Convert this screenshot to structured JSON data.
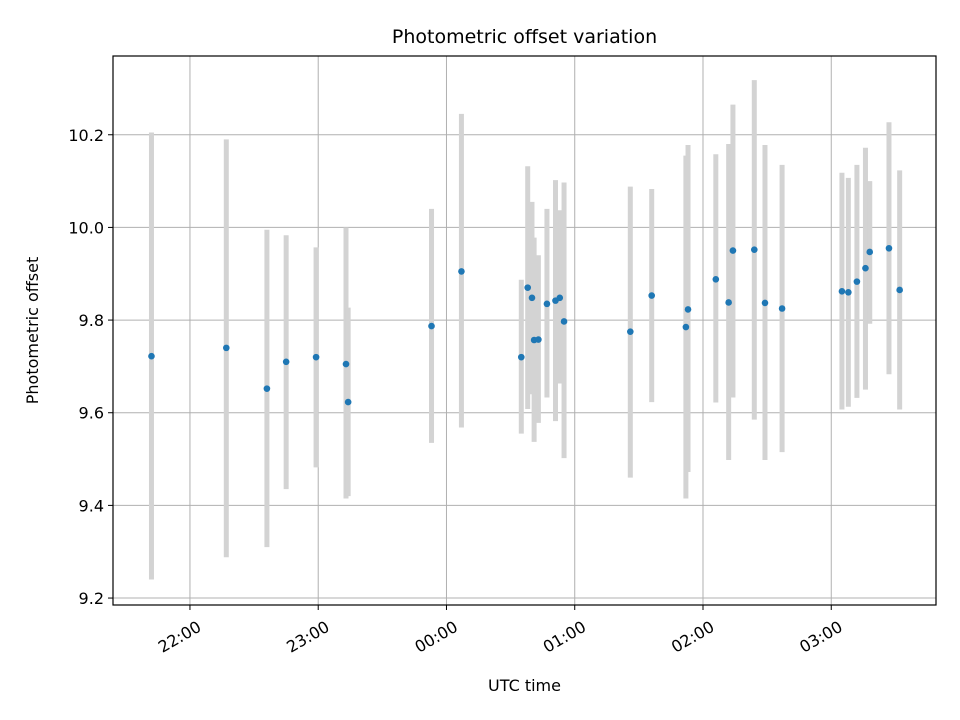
{
  "chart_data": {
    "type": "scatter",
    "title": "Photometric offset variation",
    "xlabel": "UTC time",
    "ylabel": "Photometric offset",
    "xlim": [
      "21:24",
      "03:49"
    ],
    "ylim": [
      9.185,
      10.37
    ],
    "x_ticks": [
      "22:00",
      "23:00",
      "00:00",
      "01:00",
      "02:00",
      "03:00"
    ],
    "y_ticks": [
      "9.2",
      "9.4",
      "9.6",
      "9.8",
      "10.0",
      "10.2"
    ],
    "grid": true,
    "colors": {
      "marker": "#1f77b4",
      "errorbar": "#d3d3d3",
      "grid": "#b0b0b0"
    },
    "series": [
      {
        "points": [
          {
            "x": "21:42",
            "y": 9.722,
            "low": 9.24,
            "high": 10.205
          },
          {
            "x": "22:17",
            "y": 9.74,
            "low": 9.288,
            "high": 10.19
          },
          {
            "x": "22:36",
            "y": 9.652,
            "low": 9.31,
            "high": 9.995
          },
          {
            "x": "22:45",
            "y": 9.71,
            "low": 9.435,
            "high": 9.983
          },
          {
            "x": "22:59",
            "y": 9.72,
            "low": 9.482,
            "high": 9.957
          },
          {
            "x": "23:13",
            "y": 9.705,
            "low": 9.415,
            "high": 10.0
          },
          {
            "x": "23:14",
            "y": 9.623,
            "low": 9.42,
            "high": 9.827
          },
          {
            "x": "23:53",
            "y": 9.787,
            "low": 9.535,
            "high": 10.04
          },
          {
            "x": "00:07",
            "y": 9.905,
            "low": 9.568,
            "high": 10.245
          },
          {
            "x": "00:35",
            "y": 9.72,
            "low": 9.555,
            "high": 9.887
          },
          {
            "x": "00:38",
            "y": 9.87,
            "low": 9.608,
            "high": 10.132
          },
          {
            "x": "00:40",
            "y": 9.848,
            "low": 9.64,
            "high": 10.055
          },
          {
            "x": "00:41",
            "y": 9.757,
            "low": 9.537,
            "high": 9.978
          },
          {
            "x": "00:43",
            "y": 9.758,
            "low": 9.578,
            "high": 9.94
          },
          {
            "x": "00:47",
            "y": 9.835,
            "low": 9.633,
            "high": 10.04
          },
          {
            "x": "00:51",
            "y": 9.842,
            "low": 9.582,
            "high": 10.102
          },
          {
            "x": "00:53",
            "y": 9.848,
            "low": 9.663,
            "high": 10.037
          },
          {
            "x": "00:55",
            "y": 9.797,
            "low": 9.502,
            "high": 10.097
          },
          {
            "x": "01:26",
            "y": 9.775,
            "low": 9.46,
            "high": 10.088
          },
          {
            "x": "01:36",
            "y": 9.853,
            "low": 9.623,
            "high": 10.083
          },
          {
            "x": "01:52",
            "y": 9.785,
            "low": 9.415,
            "high": 10.155
          },
          {
            "x": "01:53",
            "y": 9.823,
            "low": 9.472,
            "high": 10.178
          },
          {
            "x": "02:06",
            "y": 9.888,
            "low": 9.622,
            "high": 10.158
          },
          {
            "x": "02:12",
            "y": 9.838,
            "low": 9.498,
            "high": 10.18
          },
          {
            "x": "02:14",
            "y": 9.95,
            "low": 9.633,
            "high": 10.265
          },
          {
            "x": "02:24",
            "y": 9.952,
            "low": 9.585,
            "high": 10.318
          },
          {
            "x": "02:29",
            "y": 9.837,
            "low": 9.498,
            "high": 10.178
          },
          {
            "x": "02:37",
            "y": 9.825,
            "low": 9.515,
            "high": 10.135
          },
          {
            "x": "03:05",
            "y": 9.862,
            "low": 9.607,
            "high": 10.118
          },
          {
            "x": "03:08",
            "y": 9.86,
            "low": 9.613,
            "high": 10.107
          },
          {
            "x": "03:12",
            "y": 9.883,
            "low": 9.632,
            "high": 10.135
          },
          {
            "x": "03:16",
            "y": 9.912,
            "low": 9.65,
            "high": 10.172
          },
          {
            "x": "03:18",
            "y": 9.947,
            "low": 9.792,
            "high": 10.1
          },
          {
            "x": "03:27",
            "y": 9.955,
            "low": 9.683,
            "high": 10.227
          },
          {
            "x": "03:32",
            "y": 9.865,
            "low": 9.607,
            "high": 10.123
          }
        ]
      }
    ]
  }
}
